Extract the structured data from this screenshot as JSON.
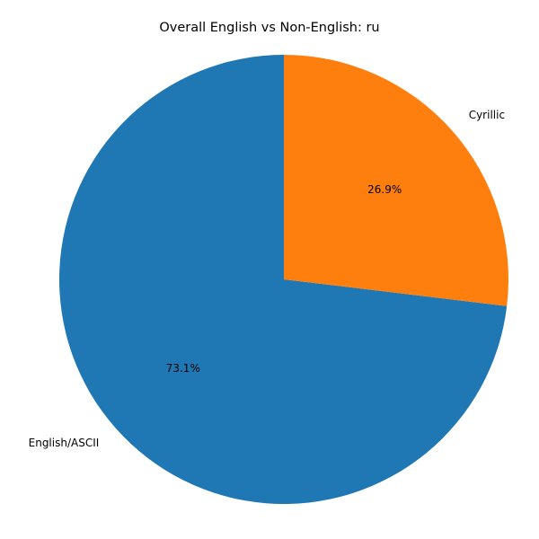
{
  "chart_data": {
    "type": "pie",
    "title": "Overall English vs Non-English: ru",
    "categories": [
      "English/ASCII",
      "Cyrillic"
    ],
    "values": [
      73.1,
      26.9
    ],
    "percent_labels": [
      "73.1%",
      "26.9%"
    ],
    "colors": [
      "#1f77b4",
      "#ff7f0e"
    ],
    "start_angle": "90 degrees (top), counterclockwise",
    "legend": "none"
  }
}
